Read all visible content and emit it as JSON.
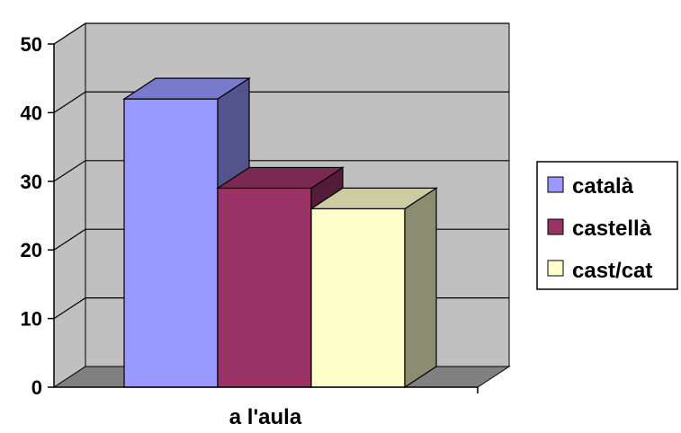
{
  "chart_data": {
    "type": "bar",
    "categories": [
      "a l'aula"
    ],
    "series": [
      {
        "name": "català",
        "values": [
          42
        ]
      },
      {
        "name": "castellà",
        "values": [
          29
        ]
      },
      {
        "name": "cast/cat",
        "values": [
          26
        ]
      }
    ],
    "ylim": [
      0,
      50
    ],
    "yticks": [
      "0",
      "10",
      "20",
      "30",
      "40",
      "50"
    ],
    "grid": true,
    "legend": "right",
    "style": "3d",
    "colors": {
      "series": [
        "#9999ff",
        "#993366",
        "#ffffcc"
      ],
      "wall": "#c0c0c0",
      "floor": "#808080"
    }
  }
}
